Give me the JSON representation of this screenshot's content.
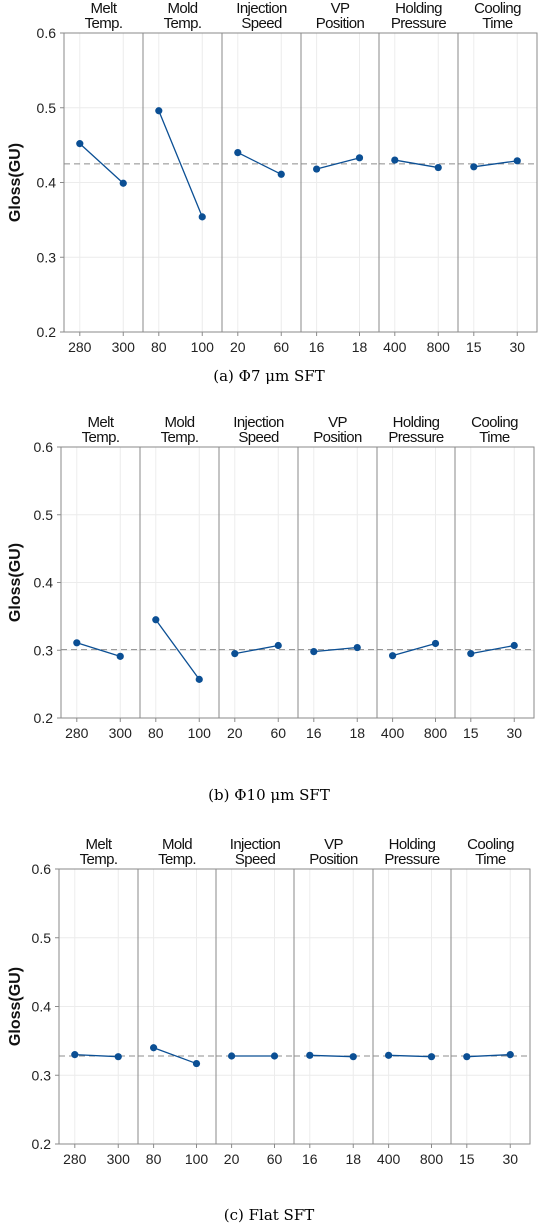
{
  "chart_data": [
    {
      "type": "line",
      "caption": "(a) Φ7 μm SFT",
      "ylabel": "Gloss(GU)",
      "ylim": [
        0.2,
        0.6
      ],
      "yticks": [
        "0.2",
        "0.3",
        "0.4",
        "0.5",
        "0.6"
      ],
      "grid": true,
      "reference_line": 0.425,
      "panels": [
        {
          "title_line1": "Melt",
          "title_line2": "Temp.",
          "x": [
            "280",
            "300"
          ],
          "values": [
            0.452,
            0.399
          ]
        },
        {
          "title_line1": "Mold",
          "title_line2": "Temp.",
          "x": [
            "80",
            "100"
          ],
          "values": [
            0.496,
            0.354
          ]
        },
        {
          "title_line1": "Injection",
          "title_line2": "Speed",
          "x": [
            "20",
            "60"
          ],
          "values": [
            0.44,
            0.411
          ]
        },
        {
          "title_line1": "VP",
          "title_line2": "Position",
          "x": [
            "16",
            "18"
          ],
          "values": [
            0.418,
            0.433
          ]
        },
        {
          "title_line1": "Holding",
          "title_line2": "Pressure",
          "x": [
            "400",
            "800"
          ],
          "values": [
            0.43,
            0.42
          ]
        },
        {
          "title_line1": "Cooling",
          "title_line2": "Time",
          "x": [
            "15",
            "30"
          ],
          "values": [
            0.421,
            0.429
          ]
        }
      ]
    },
    {
      "type": "line",
      "caption": "(b) Φ10 μm SFT",
      "ylabel": "Gloss(GU)",
      "ylim": [
        0.2,
        0.6
      ],
      "yticks": [
        "0.2",
        "0.3",
        "0.4",
        "0.5",
        "0.6"
      ],
      "grid": true,
      "reference_line": 0.301,
      "panels": [
        {
          "title_line1": "Melt",
          "title_line2": "Temp.",
          "x": [
            "280",
            "300"
          ],
          "values": [
            0.311,
            0.291
          ]
        },
        {
          "title_line1": "Mold",
          "title_line2": "Temp.",
          "x": [
            "80",
            "100"
          ],
          "values": [
            0.345,
            0.257
          ]
        },
        {
          "title_line1": "Injection",
          "title_line2": "Speed",
          "x": [
            "20",
            "60"
          ],
          "values": [
            0.295,
            0.307
          ]
        },
        {
          "title_line1": "VP",
          "title_line2": "Position",
          "x": [
            "16",
            "18"
          ],
          "values": [
            0.298,
            0.304
          ]
        },
        {
          "title_line1": "Holding",
          "title_line2": "Pressure",
          "x": [
            "400",
            "800"
          ],
          "values": [
            0.292,
            0.31
          ]
        },
        {
          "title_line1": "Cooling",
          "title_line2": "Time",
          "x": [
            "15",
            "30"
          ],
          "values": [
            0.295,
            0.307
          ]
        }
      ]
    },
    {
      "type": "line",
      "caption": "(c) Flat SFT",
      "ylabel": "Gloss(GU)",
      "ylim": [
        0.2,
        0.6
      ],
      "yticks": [
        "0.2",
        "0.3",
        "0.4",
        "0.5",
        "0.6"
      ],
      "grid": true,
      "reference_line": 0.328,
      "panels": [
        {
          "title_line1": "Melt",
          "title_line2": "Temp.",
          "x": [
            "280",
            "300"
          ],
          "values": [
            0.33,
            0.327
          ]
        },
        {
          "title_line1": "Mold",
          "title_line2": "Temp.",
          "x": [
            "80",
            "100"
          ],
          "values": [
            0.34,
            0.317
          ]
        },
        {
          "title_line1": "Injection",
          "title_line2": "Speed",
          "x": [
            "20",
            "60"
          ],
          "values": [
            0.328,
            0.328
          ]
        },
        {
          "title_line1": "VP",
          "title_line2": "Position",
          "x": [
            "16",
            "18"
          ],
          "values": [
            0.329,
            0.327
          ]
        },
        {
          "title_line1": "Holding",
          "title_line2": "Pressure",
          "x": [
            "400",
            "800"
          ],
          "values": [
            0.329,
            0.327
          ]
        },
        {
          "title_line1": "Cooling",
          "title_line2": "Time",
          "x": [
            "15",
            "30"
          ],
          "values": [
            0.327,
            0.33
          ]
        }
      ]
    }
  ],
  "colors": {
    "series": "#0b4f94",
    "reference_line": "#8c8c8c",
    "panel_border": "#8a8a8a",
    "grid": "#ececec"
  }
}
